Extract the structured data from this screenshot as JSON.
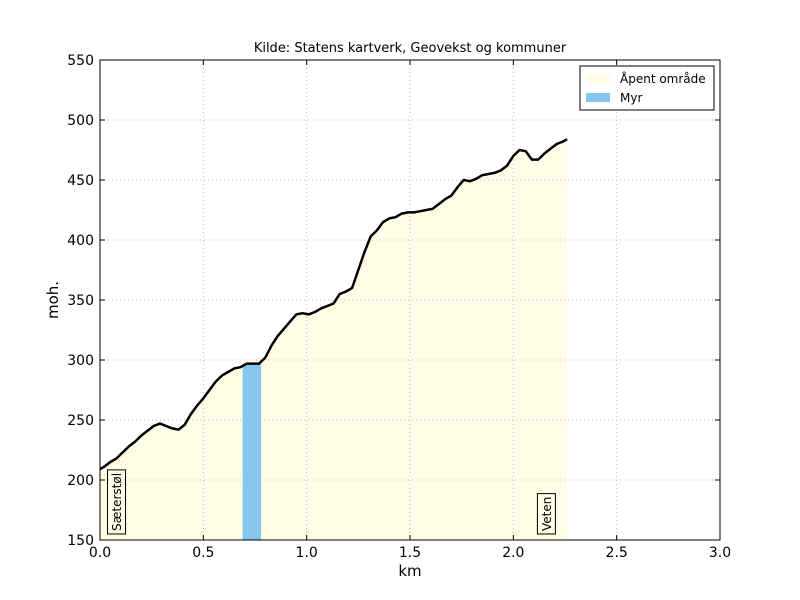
{
  "chart_data": {
    "type": "area",
    "title": "Kilde: Statens kartverk, Geovekst og kommuner",
    "xlabel": "km",
    "ylabel": "moh.",
    "xlim": [
      0,
      3
    ],
    "ylim": [
      150,
      550
    ],
    "x_ticks": [
      "0.0",
      "0.5",
      "1.0",
      "1.5",
      "2.0",
      "2.5",
      "3.0"
    ],
    "y_ticks": [
      "150",
      "200",
      "250",
      "300",
      "350",
      "400",
      "450",
      "500",
      "550"
    ],
    "grid": true,
    "legend_position": "top-right",
    "legend": [
      {
        "label": "Åpent område",
        "color": "#fffde6"
      },
      {
        "label": "Myr",
        "color": "#86c6ec"
      }
    ],
    "regions": [
      {
        "label": "Åpent område",
        "x_start": 0.0,
        "x_end": 0.69,
        "color": "#fffde6"
      },
      {
        "label": "Myr",
        "x_start": 0.69,
        "x_end": 0.78,
        "color": "#86c6ec"
      },
      {
        "label": "Åpent område",
        "x_start": 0.78,
        "x_end": 2.26,
        "color": "#fffde6"
      }
    ],
    "profile": {
      "x": [
        0.0,
        0.02,
        0.05,
        0.08,
        0.11,
        0.14,
        0.17,
        0.2,
        0.23,
        0.26,
        0.29,
        0.32,
        0.35,
        0.38,
        0.41,
        0.44,
        0.47,
        0.5,
        0.53,
        0.56,
        0.59,
        0.62,
        0.65,
        0.68,
        0.71,
        0.74,
        0.77,
        0.8,
        0.83,
        0.86,
        0.89,
        0.92,
        0.95,
        0.98,
        1.01,
        1.04,
        1.07,
        1.1,
        1.13,
        1.16,
        1.19,
        1.22,
        1.25,
        1.28,
        1.31,
        1.34,
        1.37,
        1.4,
        1.43,
        1.46,
        1.49,
        1.52,
        1.55,
        1.58,
        1.61,
        1.64,
        1.67,
        1.7,
        1.73,
        1.76,
        1.79,
        1.82,
        1.85,
        1.88,
        1.91,
        1.94,
        1.97,
        2.0,
        2.03,
        2.06,
        2.09,
        2.12,
        2.15,
        2.18,
        2.21,
        2.24,
        2.26
      ],
      "y": [
        209,
        211,
        215,
        218,
        223,
        228,
        232,
        237,
        241,
        245,
        247,
        245,
        243,
        242,
        246,
        255,
        262,
        268,
        275,
        282,
        287,
        290,
        293,
        294,
        297,
        297,
        297,
        302,
        312,
        320,
        326,
        332,
        338,
        339,
        338,
        340,
        343,
        345,
        347,
        355,
        357,
        360,
        375,
        390,
        403,
        408,
        415,
        418,
        419,
        422,
        423,
        423,
        424,
        425,
        426,
        430,
        434,
        437,
        444,
        450,
        449,
        451,
        454,
        455,
        456,
        458,
        462,
        470,
        475,
        474,
        467,
        467,
        472,
        476,
        480,
        482,
        484
      ]
    },
    "annotations": [
      {
        "text": "Sæterstøl",
        "x": 0.08
      },
      {
        "text": "Veten",
        "x": 2.16
      }
    ]
  }
}
